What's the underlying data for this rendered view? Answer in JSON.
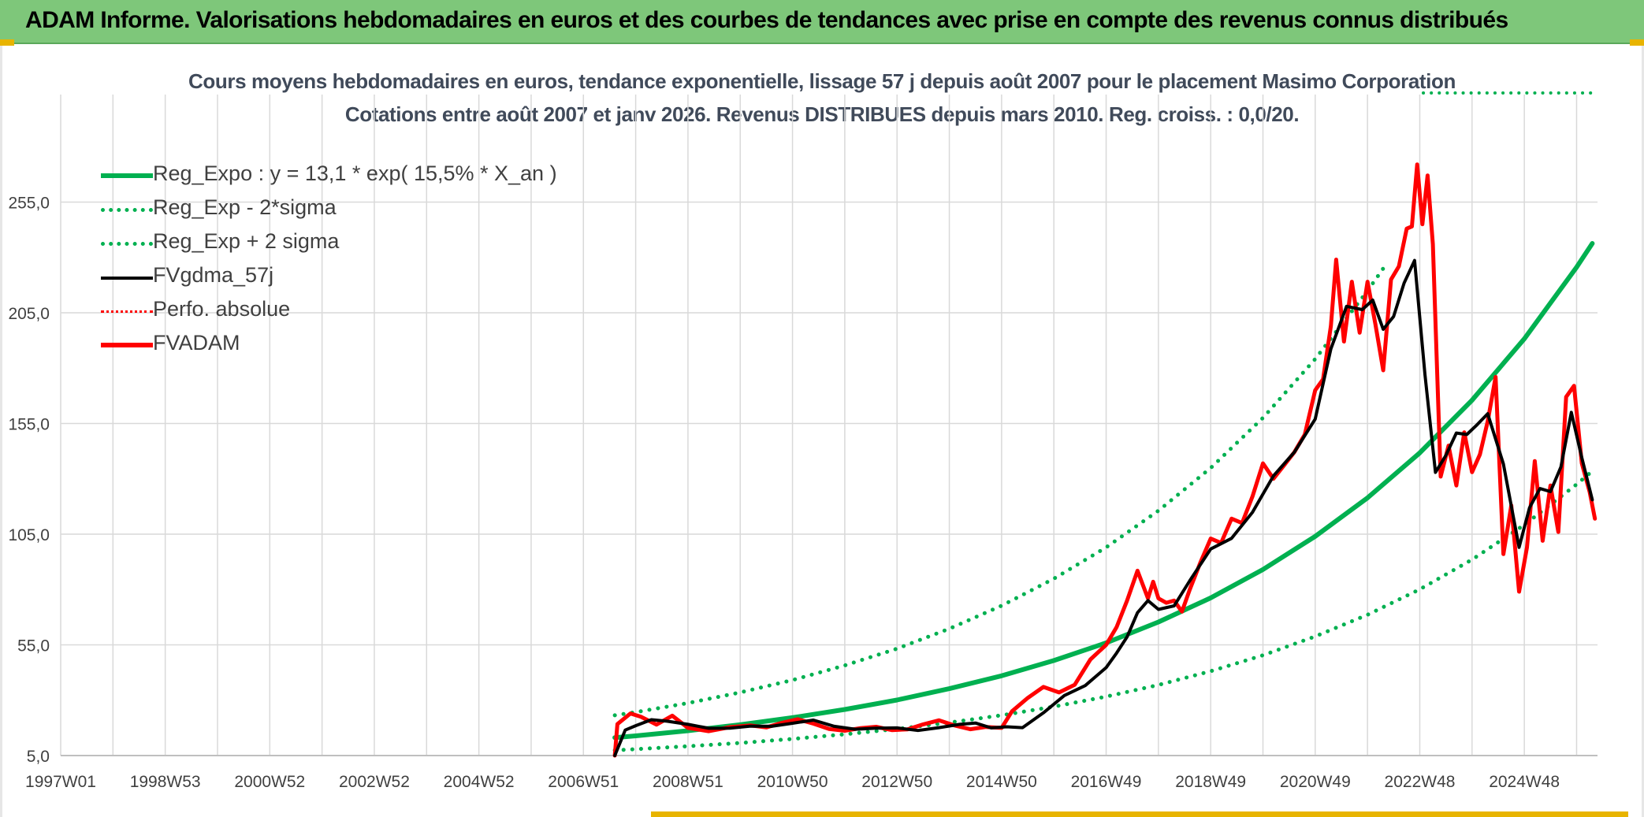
{
  "header": {
    "title": "ADAM Informe. Valorisations hebdomadaires en euros et des courbes de tendances avec prise en compte des revenus connus distribués"
  },
  "colors": {
    "header_bg": "#7ec77a",
    "accent": "#e8b400",
    "green": "#00b050",
    "red": "#ff0000",
    "black": "#000000",
    "grid": "#d9d9d9",
    "text": "#404040"
  },
  "chart_data": {
    "type": "line",
    "title": "Cours moyens hebdomadaires en euros, tendance exponentielle, lissage 57 j depuis août 2007 pour le placement Masimo Corporation",
    "subtitle": "Cotations entre août 2007 et janv 2026. Revenus DISTRIBUES depuis mars 2010. Reg. croiss. : 0,0/20.",
    "xlabel": "",
    "ylabel": "",
    "x_unit": "years since 1997W01",
    "xlim": [
      0,
      29.4
    ],
    "ylim": [
      5,
      300
    ],
    "y_ticks": [
      5,
      55,
      105,
      155,
      205,
      255
    ],
    "y_tick_labels": [
      "5,0",
      "55,0",
      "105,0",
      "155,0",
      "205,0",
      "255,0"
    ],
    "x_tick_labels": [
      "1997W01",
      "1998W53",
      "2000W52",
      "2002W52",
      "2004W52",
      "2006W51",
      "2008W51",
      "2010W50",
      "2012W50",
      "2014W50",
      "2016W49",
      "2018W49",
      "2020W49",
      "2022W48",
      "2024W48"
    ],
    "x_ticks": [
      0,
      2,
      4,
      6,
      8,
      10,
      12,
      14,
      16,
      18,
      20,
      22,
      24,
      26,
      28
    ],
    "vertical_grid_step_years": 1,
    "grid": true,
    "legend_position": "top-left",
    "regression": {
      "a": 13.1,
      "rate": 0.155,
      "start_year_offset": 10.6,
      "end_year_offset": 29.3,
      "sigma_factor_low": 0.565,
      "sigma_factor_high": 1.77
    },
    "series": [
      {
        "name": "Reg_Expo : y = 13,1 * exp( 15,5% *  X_an )",
        "role": "trend",
        "color": "#00b050",
        "style": "solid",
        "x": [
          10.6,
          11,
          12,
          13,
          14,
          15,
          16,
          17,
          18,
          19,
          20,
          21,
          22,
          23,
          24,
          25,
          26,
          27,
          28,
          29,
          29.3
        ],
        "values": [
          13.1,
          13.9,
          16.2,
          18.9,
          22.1,
          25.8,
          30.1,
          35.2,
          41.0,
          47.9,
          55.9,
          65.3,
          76.2,
          89.0,
          104.0,
          121.4,
          141.7,
          165.5,
          193.2,
          225.6,
          236.3
        ]
      },
      {
        "name": "Reg_Exp - 2*sigma",
        "role": "lower",
        "color": "#00b050",
        "style": "dotted",
        "x": [
          10.6,
          11,
          12,
          13,
          14,
          15,
          16,
          17,
          18,
          19,
          20,
          21,
          22,
          23,
          24,
          25,
          26,
          27,
          28,
          29,
          29.3
        ],
        "values": [
          7.4,
          7.9,
          9.2,
          10.7,
          12.5,
          14.6,
          17.0,
          19.9,
          23.2,
          27.1,
          31.6,
          36.9,
          43.1,
          50.3,
          58.8,
          68.6,
          80.1,
          93.5,
          109.2,
          127.5,
          133.5
        ]
      },
      {
        "name": "Reg_Exp + 2 sigma",
        "role": "upper",
        "color": "#00b050",
        "style": "dotted",
        "x": [
          10.6,
          11,
          12,
          13,
          14,
          15,
          16,
          17,
          18,
          19,
          20,
          21,
          22,
          23,
          24,
          25,
          25.3
        ],
        "values": [
          23.2,
          24.6,
          28.7,
          33.5,
          39.1,
          45.7,
          53.3,
          62.3,
          72.7,
          84.9,
          99.0,
          115.6,
          134.9,
          157.5,
          184.1,
          214.9,
          225.0
        ]
      },
      {
        "name": "FVgdma_57j",
        "role": "smooth",
        "color": "#000000",
        "style": "solid",
        "x": [
          10.6,
          10.8,
          11.0,
          11.3,
          11.6,
          12.0,
          12.4,
          12.8,
          13.2,
          13.6,
          14.0,
          14.4,
          14.8,
          15.2,
          15.6,
          16.0,
          16.4,
          16.8,
          17.2,
          17.5,
          17.8,
          18.1,
          18.4,
          18.8,
          19.2,
          19.6,
          20.0,
          20.2,
          20.4,
          20.6,
          20.8,
          21.0,
          21.3,
          21.6,
          22.0,
          22.4,
          22.8,
          23.2,
          23.6,
          24.0,
          24.3,
          24.6,
          24.9,
          25.1,
          25.3,
          25.5,
          25.7,
          25.9,
          26.1,
          26.3,
          26.5,
          26.7,
          26.9,
          27.1,
          27.3,
          27.6,
          27.9,
          28.1,
          28.3,
          28.5,
          28.7,
          28.9,
          29.1,
          29.3
        ],
        "values": [
          5,
          16.5,
          18.5,
          21.2,
          20.5,
          19.1,
          17.3,
          17.4,
          18.3,
          18.2,
          19.6,
          21.0,
          18.2,
          16.9,
          17.4,
          17.5,
          16.3,
          17.6,
          19.1,
          19.7,
          17.5,
          18.0,
          17.6,
          24.3,
          32.1,
          36.6,
          44.7,
          51.3,
          58.6,
          69.5,
          75.0,
          71.0,
          72.6,
          84.0,
          98.3,
          103.1,
          114.9,
          131.3,
          142.0,
          157.0,
          188.7,
          207.9,
          206.4,
          210.7,
          197.5,
          203.3,
          218.4,
          228.6,
          177.0,
          132.9,
          140.6,
          150.7,
          150.0,
          154.5,
          159.4,
          136.7,
          99.0,
          117.0,
          125.6,
          124.2,
          135.4,
          160.0,
          139.5,
          120.5
        ]
      },
      {
        "name": "Perfo. absolue",
        "role": "perfo",
        "color": "#ff0000",
        "style": "dotted",
        "x": [],
        "values": []
      },
      {
        "name": "FVADAM",
        "role": "price",
        "color": "#ff0000",
        "style": "solid",
        "x": [
          10.6,
          10.65,
          10.9,
          11.1,
          11.4,
          11.7,
          12.0,
          12.4,
          12.8,
          13.2,
          13.5,
          13.8,
          14.1,
          14.4,
          14.7,
          15.0,
          15.3,
          15.6,
          15.9,
          16.2,
          16.5,
          16.8,
          17.1,
          17.4,
          17.7,
          18.0,
          18.2,
          18.5,
          18.8,
          19.1,
          19.4,
          19.7,
          20.0,
          20.2,
          20.4,
          20.6,
          20.8,
          20.9,
          21.0,
          21.15,
          21.3,
          21.45,
          21.6,
          21.8,
          22.0,
          22.2,
          22.4,
          22.6,
          22.8,
          23.0,
          23.2,
          23.4,
          23.6,
          23.8,
          24.0,
          24.15,
          24.3,
          24.4,
          24.55,
          24.7,
          24.85,
          25.0,
          25.15,
          25.3,
          25.45,
          25.6,
          25.75,
          25.85,
          25.95,
          26.05,
          26.15,
          26.25,
          26.4,
          26.55,
          26.7,
          26.85,
          27.0,
          27.15,
          27.3,
          27.45,
          27.6,
          27.75,
          27.9,
          28.05,
          28.2,
          28.35,
          28.5,
          28.65,
          28.8,
          28.95,
          29.1,
          29.25,
          29.35
        ],
        "values": [
          5,
          19.2,
          24.0,
          22.5,
          19.0,
          23.0,
          17.5,
          16.0,
          17.8,
          18.6,
          17.7,
          19.8,
          21.4,
          19.4,
          17.0,
          16.2,
          17.4,
          18.0,
          16.5,
          16.8,
          19.1,
          20.9,
          18.6,
          16.9,
          17.9,
          17.5,
          25.0,
          31.0,
          36.0,
          33.5,
          37.0,
          48.4,
          55.0,
          63.0,
          75.0,
          88.5,
          76.0,
          83.5,
          76.0,
          74.0,
          75.0,
          70.0,
          80.0,
          92.0,
          103.0,
          101.0,
          112.0,
          110.0,
          122.0,
          137.0,
          130.0,
          136.0,
          142.0,
          150.0,
          170.0,
          175.0,
          199.0,
          229.0,
          192.0,
          219.0,
          196.0,
          219.0,
          200.0,
          179.0,
          220.0,
          226.0,
          243.0,
          244.0,
          272.0,
          245.0,
          267.0,
          236.0,
          131.0,
          145.0,
          127.0,
          151.0,
          133.0,
          141.0,
          156.0,
          176.0,
          96.0,
          118.0,
          79.0,
          99.0,
          138.0,
          102.0,
          127.0,
          106.0,
          167.0,
          172.0,
          137.0,
          124.0,
          112.0
        ]
      }
    ]
  }
}
